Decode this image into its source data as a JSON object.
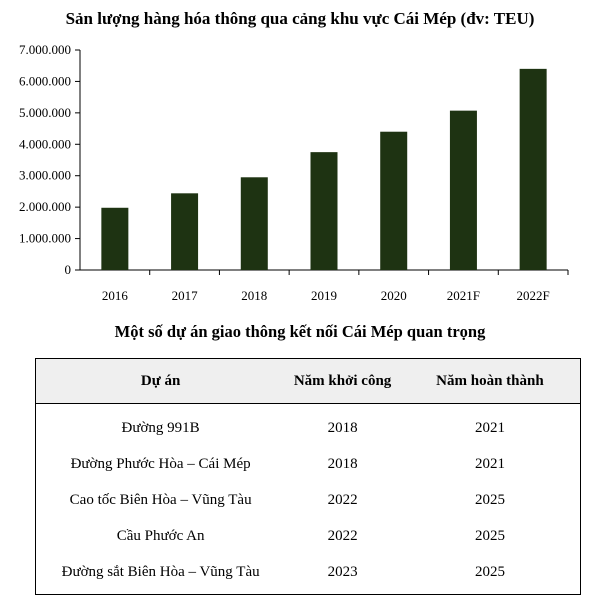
{
  "chart_data": {
    "type": "bar",
    "title": "Sản lượng hàng hóa thông qua cảng khu vực Cái Mép (đv: TEU)",
    "categories": [
      "2016",
      "2017",
      "2018",
      "2019",
      "2020",
      "2021F",
      "2022F"
    ],
    "values": [
      1980000,
      2440000,
      2950000,
      3750000,
      4400000,
      5070000,
      6400000
    ],
    "ylim": [
      0,
      7000000
    ],
    "yticks": [
      "0",
      "1.000.000",
      "2.000.000",
      "3.000.000",
      "4.000.000",
      "5.000.000",
      "6.000.000",
      "7.000.000"
    ],
    "xlabel": "",
    "ylabel": "",
    "grid": false,
    "bar_color": "#1e3312"
  },
  "table": {
    "title": "Một số dự án giao thông kết nối Cái Mép quan trọng",
    "headers": [
      "Dự án",
      "Năm khởi công",
      "Năm hoàn thành"
    ],
    "rows": [
      [
        "Đường 991B",
        "2018",
        "2021"
      ],
      [
        "Đường Phước Hòa – Cái Mép",
        "2018",
        "2021"
      ],
      [
        "Cao tốc Biên Hòa – Vũng Tàu",
        "2022",
        "2025"
      ],
      [
        "Cầu Phước An",
        "2022",
        "2025"
      ],
      [
        "Đường sắt Biên Hòa – Vũng Tàu",
        "2023",
        "2025"
      ]
    ]
  }
}
